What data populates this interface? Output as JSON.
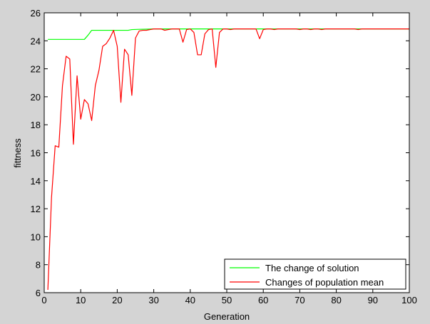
{
  "chart_data": {
    "type": "line",
    "xlabel": "Generation",
    "ylabel": "fittness",
    "xlim": [
      0,
      100
    ],
    "ylim": [
      6,
      26
    ],
    "x_ticks": [
      0,
      10,
      20,
      30,
      40,
      50,
      60,
      70,
      80,
      90,
      100
    ],
    "y_ticks": [
      6,
      8,
      10,
      12,
      14,
      16,
      18,
      20,
      22,
      24,
      26
    ],
    "grid": false,
    "legend_position": "bottom-right",
    "series": [
      {
        "name": "The change of solution",
        "color": "#00ff00",
        "x": [
          1,
          11,
          12,
          13,
          23,
          24,
          26,
          28,
          30,
          100
        ],
        "y": [
          24.1,
          24.1,
          24.4,
          24.75,
          24.75,
          24.8,
          24.82,
          24.83,
          24.85,
          24.85
        ]
      },
      {
        "name": "Changes of population mean",
        "color": "#ff0000",
        "x": [
          1,
          2,
          3,
          4,
          5,
          6,
          7,
          8,
          9,
          10,
          11,
          12,
          13,
          14,
          15,
          16,
          17,
          18,
          19,
          20,
          21,
          22,
          23,
          24,
          25,
          26,
          27,
          28,
          29,
          30,
          31,
          32,
          33,
          34,
          35,
          36,
          37,
          38,
          39,
          40,
          41,
          42,
          43,
          44,
          45,
          46,
          47,
          48,
          49,
          50,
          51,
          52,
          53,
          54,
          55,
          56,
          57,
          58,
          59,
          60,
          61,
          62,
          63,
          64,
          65,
          66,
          67,
          68,
          69,
          70,
          71,
          72,
          73,
          74,
          75,
          76,
          77,
          78,
          79,
          80,
          81,
          82,
          83,
          84,
          85,
          86,
          87,
          88,
          89,
          90,
          91,
          92,
          93,
          94,
          95,
          96,
          97,
          98,
          99,
          100
        ],
        "y": [
          6.2,
          12.8,
          16.5,
          16.4,
          20.8,
          22.9,
          22.7,
          16.6,
          21.5,
          18.4,
          19.8,
          19.5,
          18.3,
          20.8,
          21.9,
          23.6,
          23.8,
          24.2,
          24.75,
          23.6,
          19.6,
          23.4,
          23.0,
          20.1,
          24.2,
          24.7,
          24.75,
          24.75,
          24.8,
          24.85,
          24.85,
          24.85,
          24.75,
          24.8,
          24.85,
          24.85,
          24.85,
          23.9,
          24.8,
          24.85,
          24.6,
          23.0,
          23.0,
          24.5,
          24.8,
          24.85,
          22.1,
          24.6,
          24.85,
          24.85,
          24.8,
          24.85,
          24.85,
          24.85,
          24.85,
          24.85,
          24.85,
          24.85,
          24.15,
          24.8,
          24.85,
          24.85,
          24.8,
          24.85,
          24.85,
          24.85,
          24.85,
          24.85,
          24.85,
          24.8,
          24.85,
          24.85,
          24.8,
          24.85,
          24.85,
          24.8,
          24.85,
          24.85,
          24.85,
          24.85,
          24.85,
          24.85,
          24.85,
          24.85,
          24.85,
          24.8,
          24.85,
          24.85,
          24.85,
          24.85,
          24.85,
          24.85,
          24.85,
          24.85,
          24.85,
          24.85,
          24.85,
          24.85,
          24.85,
          24.85
        ]
      }
    ]
  }
}
